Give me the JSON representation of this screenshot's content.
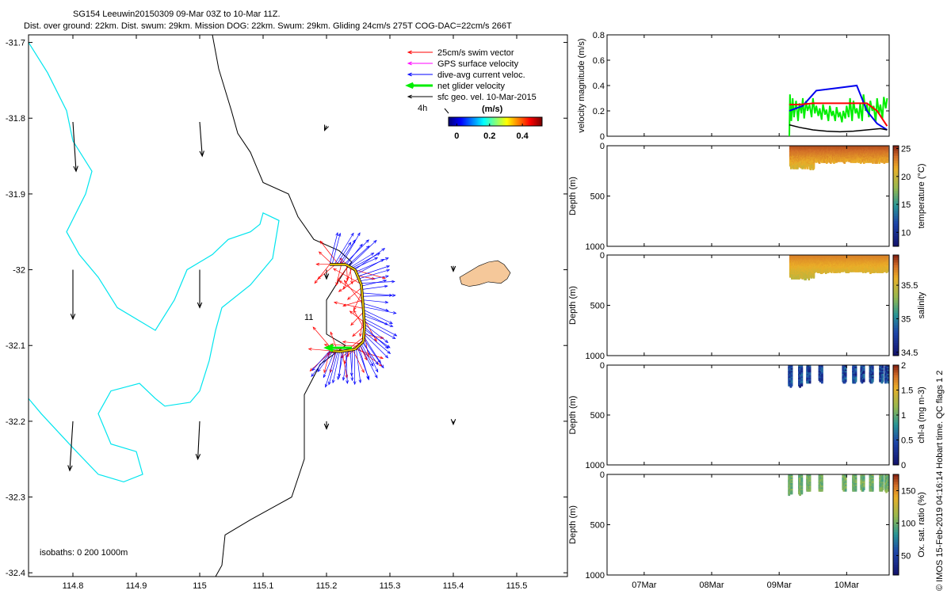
{
  "header": {
    "title": "SG154 Leeuwin20150309 09-Mar 03Z to 10-Mar 11Z.",
    "subtitle": "Dist. over ground: 22km. Dist. swum: 29km. Mission DOG: 22km. Swum: 29km. Gliding 24cm/s 275T COG-DAC=22cm/s 266T"
  },
  "footer_note": "© IMOS 15-Feb-2019 04:16:14 Hobart time. QC flags 1  2",
  "map": {
    "type": "map",
    "xlim": [
      114.73,
      115.58
    ],
    "ylim": [
      -32.405,
      -31.69
    ],
    "xticks": [
      114.8,
      114.9,
      115,
      115.1,
      115.2,
      115.3,
      115.4,
      115.5
    ],
    "xtick_labels": [
      "114.8",
      "114.9",
      "115",
      "115.1",
      "115.2",
      "115.3",
      "115.4",
      "115.5"
    ],
    "yticks": [
      -31.7,
      -31.8,
      -31.9,
      -32.0,
      -32.1,
      -32.2,
      -32.3,
      -32.4
    ],
    "ytick_labels": [
      "-31.7",
      "-31.8",
      "-31.9",
      "-32",
      "-32.1",
      "-32.2",
      "-32.3",
      "-32.4"
    ],
    "legend_placement": "top-right",
    "legend": [
      {
        "label": "25cm/s swim vector",
        "color": "#ff0000"
      },
      {
        "label": "GPS surface velocity",
        "color": "#ff00ff"
      },
      {
        "label": "dive-avg current veloc.",
        "color": "#0000ff"
      },
      {
        "label": "net glider velocity",
        "color": "#00ee00"
      },
      {
        "label": "sfc geo. vel. 10-Mar-2015",
        "color": "#000000"
      }
    ],
    "time_label": "4h",
    "colorbar": {
      "title": "(m/s)",
      "ticks": [
        0,
        0.2,
        0.4
      ],
      "tick_labels": [
        "0",
        "0.2",
        "0.4"
      ],
      "range": [
        -0.05,
        0.52
      ]
    },
    "dive_label": "11",
    "isobath_label": "isobaths: 0   200  1000m",
    "colors": {
      "coast": "#000000",
      "isobath_200": "#00e5ee",
      "island": "#f5c89a",
      "track": "#e8c200"
    },
    "coastline": [
      [
        115.02,
        -31.69
      ],
      [
        115.03,
        -31.735
      ],
      [
        115.05,
        -31.79
      ],
      [
        115.06,
        -31.82
      ],
      [
        115.08,
        -31.845
      ],
      [
        115.09,
        -31.865
      ],
      [
        115.1,
        -31.885
      ],
      [
        115.14,
        -31.9
      ],
      [
        115.155,
        -31.93
      ],
      [
        115.18,
        -31.96
      ],
      [
        115.22,
        -31.975
      ],
      [
        115.24,
        -31.99
      ],
      [
        115.23,
        -32.0
      ],
      [
        115.2,
        -32.04
      ],
      [
        115.2,
        -32.085
      ],
      [
        115.23,
        -32.1
      ],
      [
        115.19,
        -32.125
      ],
      [
        115.165,
        -32.165
      ],
      [
        115.165,
        -32.25
      ],
      [
        115.145,
        -32.3
      ],
      [
        115.08,
        -32.33
      ],
      [
        115.04,
        -32.35
      ],
      [
        115.035,
        -32.39
      ],
      [
        115.025,
        -32.405
      ]
    ],
    "isobath_200": [
      [
        [
          114.73,
          -31.7
        ],
        [
          114.76,
          -31.74
        ],
        [
          114.79,
          -31.79
        ],
        [
          114.8,
          -31.83
        ],
        [
          114.83,
          -31.87
        ],
        [
          114.82,
          -31.9
        ],
        [
          114.79,
          -31.95
        ],
        [
          114.81,
          -31.98
        ],
        [
          114.84,
          -32.01
        ],
        [
          114.87,
          -32.05
        ],
        [
          114.93,
          -32.08
        ],
        [
          114.96,
          -32.04
        ],
        [
          114.98,
          -32.0
        ],
        [
          115.02,
          -31.98
        ],
        [
          115.045,
          -31.96
        ],
        [
          115.08,
          -31.95
        ],
        [
          115.095,
          -31.94
        ],
        [
          115.1,
          -31.925
        ],
        [
          115.125,
          -31.935
        ],
        [
          115.115,
          -31.985
        ],
        [
          115.08,
          -32.02
        ],
        [
          115.035,
          -32.05
        ],
        [
          115.025,
          -32.08
        ],
        [
          115.015,
          -32.12
        ],
        [
          115.0,
          -32.16
        ],
        [
          114.985,
          -32.175
        ],
        [
          114.945,
          -32.18
        ],
        [
          114.93,
          -32.17
        ],
        [
          114.905,
          -32.15
        ],
        [
          114.86,
          -32.16
        ],
        [
          114.84,
          -32.19
        ],
        [
          114.86,
          -32.23
        ],
        [
          114.9,
          -32.24
        ],
        [
          114.91,
          -32.27
        ],
        [
          114.88,
          -32.28
        ],
        [
          114.84,
          -32.27
        ],
        [
          114.8,
          -32.235
        ],
        [
          114.75,
          -32.19
        ],
        [
          114.73,
          -32.17
        ]
      ]
    ],
    "island": [
      [
        115.41,
        -32.01
      ],
      [
        115.43,
        -32.0
      ],
      [
        115.44,
        -31.995
      ],
      [
        115.455,
        -31.99
      ],
      [
        115.47,
        -31.988
      ],
      [
        115.48,
        -31.993
      ],
      [
        115.49,
        -32.004
      ],
      [
        115.485,
        -32.012
      ],
      [
        115.475,
        -32.018
      ],
      [
        115.455,
        -32.016
      ],
      [
        115.44,
        -32.02
      ],
      [
        115.425,
        -32.022
      ],
      [
        115.413,
        -32.019
      ]
    ],
    "glider_track": [
      [
        115.205,
        -31.993
      ],
      [
        115.23,
        -31.993
      ],
      [
        115.245,
        -32.0
      ],
      [
        115.255,
        -32.02
      ],
      [
        115.258,
        -32.05
      ],
      [
        115.26,
        -32.075
      ],
      [
        115.258,
        -32.095
      ],
      [
        115.245,
        -32.105
      ],
      [
        115.222,
        -32.108
      ],
      [
        115.205,
        -32.107
      ]
    ],
    "geo_vectors": [
      {
        "lon": 114.8,
        "lat": -31.805,
        "u": 0.005,
        "v": -0.065
      },
      {
        "lon": 115.0,
        "lat": -31.805,
        "u": 0.004,
        "v": -0.045
      },
      {
        "lon": 115.2,
        "lat": -31.81,
        "u": -0.003,
        "v": -0.006
      },
      {
        "lon": 114.8,
        "lat": -32.0,
        "u": 0.0,
        "v": -0.065
      },
      {
        "lon": 115.0,
        "lat": -32.0,
        "u": 0.0,
        "v": -0.05
      },
      {
        "lon": 115.2,
        "lat": -32.0,
        "u": 0.0,
        "v": -0.012
      },
      {
        "lon": 115.4,
        "lat": -31.995,
        "u": 0.0,
        "v": -0.007
      },
      {
        "lon": 114.8,
        "lat": -32.2,
        "u": -0.005,
        "v": -0.065
      },
      {
        "lon": 115.0,
        "lat": -32.2,
        "u": -0.003,
        "v": -0.05
      },
      {
        "lon": 115.2,
        "lat": -32.2,
        "u": 0.0,
        "v": -0.01
      },
      {
        "lon": 115.4,
        "lat": -32.2,
        "u": 0.0,
        "v": -0.004
      }
    ],
    "net_velocity_vector": {
      "lon": 115.24,
      "lat": -32.103,
      "u": -0.04,
      "v": 0.0
    }
  },
  "panels": {
    "xlim_days": [
      6.45,
      10.63
    ],
    "xticks": [
      7,
      8,
      9,
      10
    ],
    "xtick_labels": [
      "07Mar",
      "08Mar",
      "09Mar",
      "10Mar"
    ],
    "velocity": {
      "ylabel": "velocity magnitude (m/s)",
      "ylim": [
        0,
        0.8
      ],
      "yticks": [
        0,
        0.2,
        0.4,
        0.6,
        0.8
      ],
      "ytick_labels": [
        "0",
        "0.2",
        "0.4",
        "0.6",
        "0.8"
      ],
      "series": [
        {
          "color": "#ff0000",
          "x": [
            9.15,
            9.3,
            9.5,
            10.1,
            10.3,
            10.45,
            10.6
          ],
          "y": [
            0.25,
            0.25,
            0.26,
            0.26,
            0.26,
            0.2,
            0.08
          ]
        },
        {
          "color": "#0000ee",
          "x": [
            9.15,
            9.35,
            9.55,
            9.85,
            10.15,
            10.3,
            10.45,
            10.6
          ],
          "y": [
            0.2,
            0.24,
            0.36,
            0.38,
            0.4,
            0.2,
            0.1,
            0.05
          ]
        },
        {
          "color": "#000000",
          "x": [
            9.15,
            9.3,
            9.5,
            9.7,
            9.9,
            10.1,
            10.3,
            10.5,
            10.6
          ],
          "y": [
            0.09,
            0.07,
            0.05,
            0.04,
            0.035,
            0.04,
            0.05,
            0.06,
            0.05
          ]
        },
        {
          "color": "#00ee00",
          "x": [
            9.15,
            9.16,
            9.18,
            9.2,
            9.22,
            9.25,
            9.28,
            9.3,
            9.33,
            9.35,
            9.37,
            9.4,
            9.42,
            9.45,
            9.48,
            9.5,
            9.53,
            9.55,
            9.58,
            9.6,
            9.63,
            9.65,
            9.68,
            9.7,
            9.73,
            9.75,
            9.78,
            9.8,
            9.83,
            9.85,
            9.88,
            9.9,
            9.93,
            9.95,
            9.98,
            10.0,
            10.03,
            10.05,
            10.08,
            10.1,
            10.13,
            10.15,
            10.18,
            10.2,
            10.23,
            10.25,
            10.28,
            10.3,
            10.33,
            10.35,
            10.38,
            10.4,
            10.43,
            10.45,
            10.48,
            10.5,
            10.53,
            10.55,
            10.58,
            10.6
          ],
          "y": [
            0.0,
            0.33,
            0.12,
            0.3,
            0.15,
            0.28,
            0.12,
            0.26,
            0.18,
            0.3,
            0.14,
            0.28,
            0.2,
            0.25,
            0.15,
            0.3,
            0.18,
            0.24,
            0.16,
            0.22,
            0.13,
            0.25,
            0.17,
            0.21,
            0.12,
            0.24,
            0.16,
            0.2,
            0.12,
            0.23,
            0.15,
            0.19,
            0.11,
            0.2,
            0.14,
            0.24,
            0.15,
            0.3,
            0.12,
            0.28,
            0.18,
            0.22,
            0.14,
            0.26,
            0.12,
            0.33,
            0.2,
            0.25,
            0.15,
            0.28,
            0.2,
            0.24,
            0.11,
            0.3,
            0.18,
            0.25,
            0.14,
            0.31,
            0.22,
            0.3
          ]
        }
      ]
    },
    "temperature": {
      "ylabel": "Depth (m)",
      "cbar_label": "temperature (°C)",
      "ylim": [
        0,
        1000
      ],
      "yticks": [
        0,
        500,
        1000
      ],
      "ytick_labels": [
        "0",
        "500",
        "1000"
      ],
      "clim": [
        7.5,
        25.5
      ],
      "cbar_ticks": [
        10,
        15,
        20,
        25
      ],
      "cbar_tick_labels": [
        "10",
        "15",
        "20",
        "25"
      ],
      "x_start": 9.15,
      "x_end": 10.6,
      "max_depth": 220,
      "value_range": [
        19.5,
        24.5
      ]
    },
    "salinity": {
      "ylabel": "Depth (m)",
      "cbar_label": "salinity",
      "ylim": [
        0,
        1000
      ],
      "yticks": [
        0,
        500,
        1000
      ],
      "ytick_labels": [
        "0",
        "500",
        "1000"
      ],
      "clim": [
        34.45,
        35.95
      ],
      "cbar_ticks": [
        34.5,
        35,
        35.5
      ],
      "cbar_tick_labels": [
        "34.5",
        "35",
        "35.5"
      ],
      "x_start": 9.15,
      "x_end": 10.6,
      "max_depth": 230,
      "value_range": [
        35.4,
        35.75
      ]
    },
    "chla": {
      "ylabel": "Depth (m)",
      "cbar_label": "chl-a (mg m-3)",
      "ylim": [
        0,
        1000
      ],
      "yticks": [
        0,
        500,
        1000
      ],
      "ytick_labels": [
        "0",
        "500",
        "1000"
      ],
      "clim": [
        0,
        2
      ],
      "cbar_ticks": [
        0,
        0.5,
        1,
        1.5,
        2
      ],
      "cbar_tick_labels": [
        "0",
        "0.5",
        "1",
        "1.5",
        "2"
      ],
      "groups": [
        9.15,
        9.3,
        9.42,
        9.6,
        9.95,
        10.1,
        10.22,
        10.35,
        10.5,
        10.58
      ],
      "max_depth": 210,
      "value_range": [
        0.05,
        0.7
      ]
    },
    "oxygen": {
      "ylabel": "Depth (m)",
      "cbar_label": "Ox. sat. ratio (%)",
      "ylim": [
        0,
        1000
      ],
      "yticks": [
        0,
        500,
        1000
      ],
      "ytick_labels": [
        "0",
        "500",
        "1000"
      ],
      "clim": [
        20,
        175
      ],
      "cbar_ticks": [
        50,
        100,
        150
      ],
      "cbar_tick_labels": [
        "50",
        "100",
        "150"
      ],
      "groups": [
        9.15,
        9.3,
        9.42,
        9.6,
        9.95,
        10.1,
        10.22,
        10.35,
        10.5,
        10.58
      ],
      "max_depth": 200,
      "value_range": [
        90,
        112
      ]
    }
  }
}
